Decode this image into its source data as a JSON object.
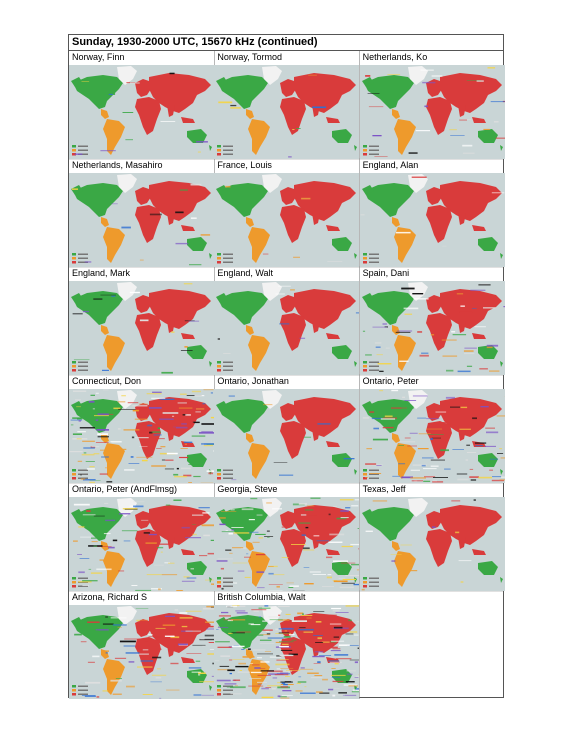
{
  "page": {
    "title": "Sunday, 1930-2000 UTC, 15670 kHz (continued)"
  },
  "colors": {
    "ocean": "#c9d5d6",
    "americas_good": "#3aa845",
    "americas_south": "#ee9a2c",
    "eurasia": "#d93b3b",
    "greenland": "#f2f2f2",
    "australia": "#3aa845"
  },
  "cells": [
    {
      "label": "Norway, Finn",
      "noise": 0.05
    },
    {
      "label": "Norway, Tormod",
      "noise": 0.03
    },
    {
      "label": "Netherlands, Ko",
      "noise": 0.1
    },
    {
      "label": "Netherlands, Masahiro",
      "noise": 0.05
    },
    {
      "label": "France, Louis",
      "noise": 0.02
    },
    {
      "label": "England, Alan",
      "noise": 0.02
    },
    {
      "label": "England, Mark",
      "noise": 0.06
    },
    {
      "label": "England, Walt",
      "noise": 0.03
    },
    {
      "label": "Spain, Dani",
      "noise": 0.18
    },
    {
      "label": "Connecticut, Don",
      "noise": 0.55
    },
    {
      "label": "Ontario, Jonathan",
      "noise": 0.03
    },
    {
      "label": "Ontario, Peter",
      "noise": 0.35
    },
    {
      "label": "Ontario, Peter (AndFlmsg)",
      "noise": 0.3
    },
    {
      "label": "Georgia, Steve",
      "noise": 0.4
    },
    {
      "label": "Texas, Jeff",
      "noise": 0.05
    },
    {
      "label": "Arizona, Richard S",
      "noise": 0.35
    },
    {
      "label": "British Columbia, Walt",
      "noise": 0.85
    }
  ]
}
